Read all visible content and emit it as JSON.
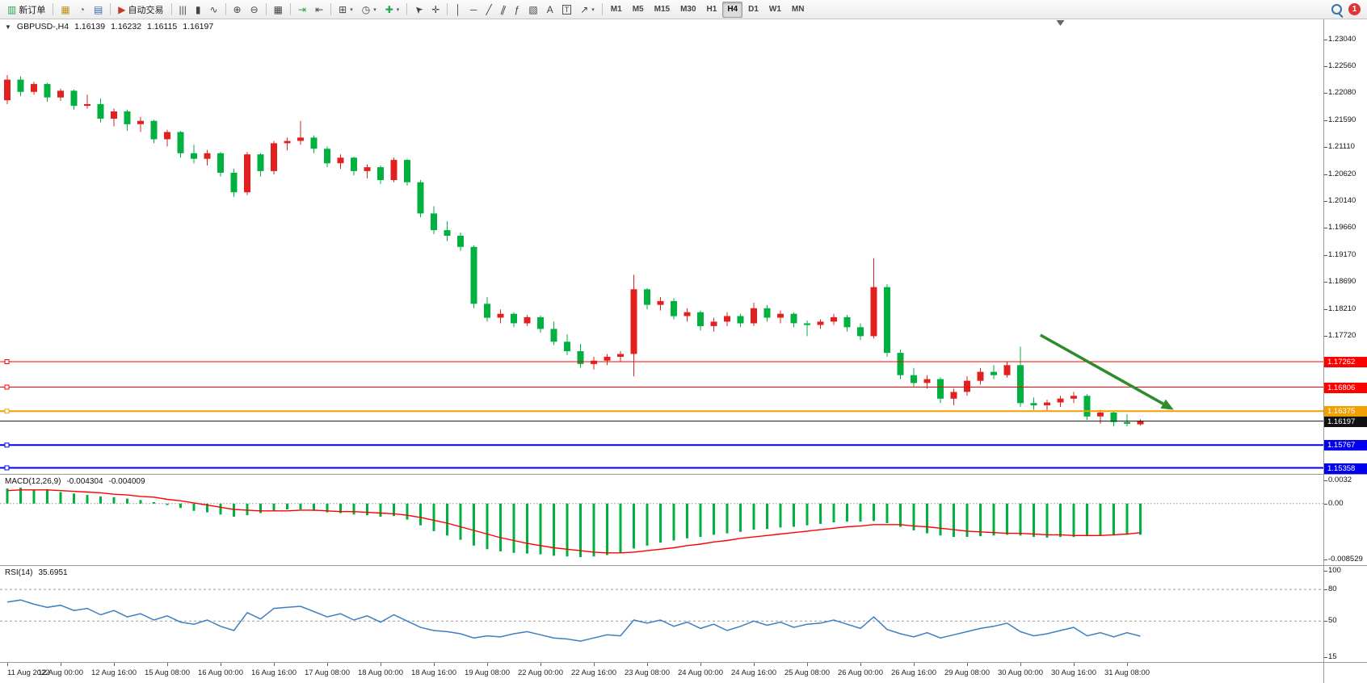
{
  "toolbar": {
    "dropdown_glyph": "▾",
    "badge": "1",
    "active_timeframe": "H4",
    "timeframes": [
      "M1",
      "M5",
      "M15",
      "M30",
      "H1",
      "H4",
      "D1",
      "W1",
      "MN"
    ],
    "groups": [
      {
        "items": [
          {
            "name": "new-order-button",
            "glyph": "▥",
            "glyph_color": "#2da44e",
            "label": "新订单"
          }
        ]
      },
      {
        "items": [
          {
            "name": "market-watch-button",
            "glyph": "▦",
            "glyph_color": "#c09020"
          },
          {
            "name": "navigator-button",
            "glyph": "◔",
            "glyph_color": "#3a6ea5"
          },
          {
            "name": "data-window-button",
            "glyph": "▤",
            "glyph_color": "#3a6ea5"
          }
        ]
      },
      {
        "items": [
          {
            "name": "auto-trading-button",
            "glyph": "▶",
            "glyph_color": "#c03a2b",
            "label": "自动交易"
          }
        ]
      },
      {
        "items": [
          {
            "name": "bar-chart-button",
            "glyph": "|||"
          },
          {
            "name": "candlestick-button",
            "glyph": "▮"
          },
          {
            "name": "line-chart-button",
            "glyph": "∿"
          }
        ]
      },
      {
        "items": [
          {
            "name": "zoom-in-button",
            "glyph": "⊕"
          },
          {
            "name": "zoom-out-button",
            "glyph": "⊖"
          }
        ]
      },
      {
        "items": [
          {
            "name": "tile-windows-button",
            "glyph": "▦"
          }
        ]
      },
      {
        "items": [
          {
            "name": "auto-scroll-button",
            "glyph": "⇥",
            "glyph_color": "#2da44e"
          },
          {
            "name": "chart-shift-button",
            "glyph": "⇤"
          }
        ]
      },
      {
        "items": [
          {
            "name": "new-chart-button",
            "glyph": "⊞",
            "dropdown": true
          },
          {
            "name": "periods-button",
            "glyph": "◷",
            "dropdown": true
          },
          {
            "name": "indicators-button",
            "glyph": "✚",
            "glyph_color": "#2da44e",
            "dropdown": true
          }
        ]
      },
      {
        "items": [
          {
            "name": "cursor-button",
            "glyph": "➤",
            "rot": -135
          },
          {
            "name": "crosshair-button",
            "glyph": "✛"
          }
        ]
      },
      {
        "items": [
          {
            "name": "vertical-line-button",
            "glyph": "│"
          },
          {
            "name": "horizontal-line-button",
            "glyph": "─"
          },
          {
            "name": "trendline-button",
            "glyph": "╱"
          },
          {
            "name": "channel-button",
            "glyph": "∥",
            "rot": 20
          },
          {
            "name": "fibonacci-button",
            "glyph": "ƒ"
          },
          {
            "name": "shapes-button",
            "glyph": "▧"
          },
          {
            "name": "text-button",
            "glyph": "A"
          },
          {
            "name": "text-label-button",
            "glyph": "T",
            "boxed": true
          },
          {
            "name": "arrows-button",
            "glyph": "↗",
            "dropdown": true
          }
        ]
      }
    ]
  },
  "chart_header": {
    "collapse_glyph": "▼",
    "title": "GBPUSD-,H4",
    "open": "1.16139",
    "high": "1.16232",
    "low": "1.16115",
    "close": "1.16197"
  },
  "chart_data": [
    {
      "type": "candlestick",
      "symbol": "GBPUSD-",
      "period": "H4",
      "up_color": "#e32020",
      "down_color": "#00b140",
      "ylim": [
        1.1525,
        1.234
      ],
      "x_label_every": 4,
      "x_labels": [
        "11 Aug 2022",
        "12 Aug 00:00",
        "12 Aug 16:00",
        "15 Aug 08:00",
        "16 Aug 00:00",
        "16 Aug 16:00",
        "17 Aug 08:00",
        "18 Aug 00:00",
        "18 Aug 16:00",
        "19 Aug 08:00",
        "22 Aug 00:00",
        "22 Aug 16:00",
        "23 Aug 08:00",
        "24 Aug 00:00",
        "24 Aug 16:00",
        "25 Aug 08:00",
        "26 Aug 00:00",
        "26 Aug 16:00",
        "29 Aug 08:00",
        "30 Aug 00:00",
        "30 Aug 16:00",
        "31 Aug 08:00"
      ],
      "scale_labels": [
        "1.23040",
        "1.22560",
        "1.22080",
        "1.21590",
        "1.21110",
        "1.20620",
        "1.20140",
        "1.19660",
        "1.19170",
        "1.18690",
        "1.18210",
        "1.17720"
      ],
      "hlines": [
        {
          "label": "1.17262",
          "price": 1.17262,
          "color": "#ff0000",
          "width": 1
        },
        {
          "label": "1.16806",
          "price": 1.16806,
          "color": "#ff0000",
          "width": 1
        },
        {
          "label": "1.16375",
          "price": 1.16375,
          "color": "#f0a000",
          "width": 2
        },
        {
          "label": "1.15767",
          "price": 1.15767,
          "color": "#0000ee",
          "width": 2
        },
        {
          "label": "1.15358",
          "price": 1.15358,
          "color": "#0000ee",
          "width": 2
        },
        {
          "label": "1.16197",
          "price": 1.16197,
          "color": "#111111",
          "width": 1,
          "current": true
        }
      ],
      "arrow": {
        "from": [
          77.5,
          1.1774
        ],
        "to": [
          87.5,
          1.164
        ],
        "color": "#2e8b2e"
      },
      "shift_marker_bar": 79,
      "candles": [
        [
          1.2195,
          1.224,
          1.2188,
          1.2232
        ],
        [
          1.2232,
          1.2238,
          1.2202,
          1.221
        ],
        [
          1.221,
          1.2228,
          1.2205,
          1.2224
        ],
        [
          1.2224,
          1.2226,
          1.2192,
          1.22
        ],
        [
          1.22,
          1.2216,
          1.2194,
          1.2212
        ],
        [
          1.2212,
          1.2214,
          1.2178,
          1.2185
        ],
        [
          1.2185,
          1.2205,
          1.218,
          1.2188
        ],
        [
          1.2188,
          1.2198,
          1.2155,
          1.2162
        ],
        [
          1.2162,
          1.218,
          1.2148,
          1.2175
        ],
        [
          1.2175,
          1.2178,
          1.214,
          1.2152
        ],
        [
          1.2152,
          1.2165,
          1.2138,
          1.2158
        ],
        [
          1.2158,
          1.216,
          1.2118,
          1.2125
        ],
        [
          1.2125,
          1.2142,
          1.2112,
          1.2138
        ],
        [
          1.2138,
          1.214,
          1.2092,
          1.21
        ],
        [
          1.21,
          1.2115,
          1.2082,
          1.209
        ],
        [
          1.209,
          1.2106,
          1.2078,
          1.21
        ],
        [
          1.21,
          1.2102,
          1.2058,
          1.2065
        ],
        [
          1.2065,
          1.2072,
          1.2022,
          1.203
        ],
        [
          1.203,
          1.2102,
          1.2025,
          1.2098
        ],
        [
          1.2098,
          1.21,
          1.2058,
          1.2068
        ],
        [
          1.2068,
          1.2122,
          1.2062,
          1.2118
        ],
        [
          1.2118,
          1.2128,
          1.2105,
          1.2122
        ],
        [
          1.2122,
          1.2158,
          1.2115,
          1.2128
        ],
        [
          1.2128,
          1.2132,
          1.21,
          1.2108
        ],
        [
          1.2108,
          1.2112,
          1.2075,
          1.2082
        ],
        [
          1.2082,
          1.2098,
          1.2072,
          1.2092
        ],
        [
          1.2092,
          1.2094,
          1.206,
          1.2068
        ],
        [
          1.2068,
          1.208,
          1.2055,
          1.2075
        ],
        [
          1.2075,
          1.2078,
          1.2045,
          1.2052
        ],
        [
          1.2052,
          1.2092,
          1.2048,
          1.2088
        ],
        [
          1.2088,
          1.209,
          1.2042,
          1.2048
        ],
        [
          1.2048,
          1.2052,
          1.1985,
          1.1992
        ],
        [
          1.1992,
          1.2005,
          1.1955,
          1.1962
        ],
        [
          1.1962,
          1.1978,
          1.1942,
          1.1952
        ],
        [
          1.1952,
          1.1958,
          1.1925,
          1.1932
        ],
        [
          1.1932,
          1.1935,
          1.1822,
          1.183
        ],
        [
          1.183,
          1.1842,
          1.1798,
          1.1805
        ],
        [
          1.1805,
          1.182,
          1.1795,
          1.1812
        ],
        [
          1.1812,
          1.1815,
          1.1788,
          1.1795
        ],
        [
          1.1795,
          1.181,
          1.179,
          1.1806
        ],
        [
          1.1806,
          1.1809,
          1.1778,
          1.1785
        ],
        [
          1.1785,
          1.1798,
          1.1756,
          1.1762
        ],
        [
          1.1762,
          1.1775,
          1.1738,
          1.1745
        ],
        [
          1.1745,
          1.1758,
          1.1715,
          1.1722
        ],
        [
          1.1722,
          1.1735,
          1.1712,
          1.1728
        ],
        [
          1.1728,
          1.174,
          1.172,
          1.1735
        ],
        [
          1.1735,
          1.1745,
          1.1725,
          1.174
        ],
        [
          1.174,
          1.1882,
          1.17,
          1.1856
        ],
        [
          1.1856,
          1.1858,
          1.182,
          1.1828
        ],
        [
          1.1828,
          1.1842,
          1.1818,
          1.1835
        ],
        [
          1.1835,
          1.184,
          1.1802,
          1.1808
        ],
        [
          1.1808,
          1.1822,
          1.1798,
          1.1815
        ],
        [
          1.1815,
          1.1818,
          1.1782,
          1.179
        ],
        [
          1.179,
          1.1805,
          1.178,
          1.1798
        ],
        [
          1.1798,
          1.1815,
          1.179,
          1.1808
        ],
        [
          1.1808,
          1.1812,
          1.1788,
          1.1795
        ],
        [
          1.1795,
          1.1832,
          1.179,
          1.1822
        ],
        [
          1.1822,
          1.1828,
          1.1798,
          1.1805
        ],
        [
          1.1805,
          1.1818,
          1.1795,
          1.1812
        ],
        [
          1.1812,
          1.1815,
          1.1788,
          1.1795
        ],
        [
          1.1795,
          1.18,
          1.1772,
          1.1792
        ],
        [
          1.1792,
          1.1802,
          1.1785,
          1.1798
        ],
        [
          1.1798,
          1.1812,
          1.1792,
          1.1806
        ],
        [
          1.1806,
          1.181,
          1.178,
          1.1788
        ],
        [
          1.1788,
          1.1795,
          1.1765,
          1.1772
        ],
        [
          1.1772,
          1.1912,
          1.1768,
          1.186
        ],
        [
          1.186,
          1.1865,
          1.1735,
          1.1742
        ],
        [
          1.1742,
          1.1748,
          1.1695,
          1.1702
        ],
        [
          1.1702,
          1.1715,
          1.168,
          1.1688
        ],
        [
          1.1688,
          1.1702,
          1.1678,
          1.1695
        ],
        [
          1.1695,
          1.1698,
          1.1652,
          1.166
        ],
        [
          1.166,
          1.1678,
          1.1648,
          1.1672
        ],
        [
          1.1672,
          1.17,
          1.1665,
          1.1692
        ],
        [
          1.1692,
          1.1715,
          1.1685,
          1.1708
        ],
        [
          1.1708,
          1.172,
          1.1695,
          1.1702
        ],
        [
          1.1702,
          1.1726,
          1.1698,
          1.172
        ],
        [
          1.172,
          1.1753,
          1.1645,
          1.1652
        ],
        [
          1.1652,
          1.1662,
          1.164,
          1.1648
        ],
        [
          1.1648,
          1.1658,
          1.1638,
          1.1653
        ],
        [
          1.1653,
          1.1665,
          1.1645,
          1.166
        ],
        [
          1.166,
          1.1672,
          1.1652,
          1.1665
        ],
        [
          1.1665,
          1.1668,
          1.1622,
          1.1628
        ],
        [
          1.1628,
          1.164,
          1.1615,
          1.1635
        ],
        [
          1.1635,
          1.1638,
          1.161,
          1.1618
        ],
        [
          1.1618,
          1.1632,
          1.161,
          1.1615
        ],
        [
          1.16139,
          1.16232,
          1.16115,
          1.16197
        ]
      ]
    },
    {
      "type": "macd-histogram",
      "label": "MACD(12,26,9)",
      "values_text": [
        "-0.004304",
        "-0.004009"
      ],
      "hist_color": "#00b140",
      "signal_color": "#ff0000",
      "ylim": [
        -0.0085,
        0.004
      ],
      "scale_labels": [
        "0.0032",
        "0.00",
        "-0.008529"
      ],
      "hist": [
        0.0021,
        0.0022,
        0.0019,
        0.002,
        0.0016,
        0.0014,
        0.0012,
        0.001,
        0.0009,
        0.0007,
        0.0005,
        0.0002,
        -0.0002,
        -0.0006,
        -0.001,
        -0.0012,
        -0.0015,
        -0.0018,
        -0.0016,
        -0.0013,
        -0.001,
        -0.0008,
        -0.0008,
        -0.001,
        -0.0012,
        -0.0013,
        -0.0015,
        -0.0016,
        -0.0018,
        -0.0017,
        -0.0022,
        -0.003,
        -0.0038,
        -0.0044,
        -0.005,
        -0.0058,
        -0.0063,
        -0.0066,
        -0.0068,
        -0.0069,
        -0.007,
        -0.0072,
        -0.0073,
        -0.0074,
        -0.0073,
        -0.0071,
        -0.0068,
        -0.0062,
        -0.0058,
        -0.0054,
        -0.0051,
        -0.0048,
        -0.0046,
        -0.0043,
        -0.0041,
        -0.0039,
        -0.0036,
        -0.0035,
        -0.0033,
        -0.0032,
        -0.003,
        -0.0028,
        -0.0026,
        -0.0025,
        -0.0025,
        -0.0024,
        -0.0027,
        -0.0032,
        -0.0037,
        -0.0041,
        -0.0044,
        -0.0046,
        -0.0046,
        -0.0045,
        -0.0044,
        -0.0043,
        -0.0044,
        -0.0046,
        -0.0047,
        -0.0046,
        -0.0046,
        -0.0045,
        -0.0044,
        -0.0044,
        -0.0043,
        -0.004304
      ],
      "signal": [
        0.0018,
        0.0019,
        0.0019,
        0.0019,
        0.0018,
        0.0017,
        0.0016,
        0.0015,
        0.0013,
        0.0012,
        0.001,
        0.0009,
        0.0006,
        0.0004,
        0.0001,
        -0.0002,
        -0.0005,
        -0.0008,
        -0.0009,
        -0.001,
        -0.001,
        -0.001,
        -0.0009,
        -0.0009,
        -0.001,
        -0.0011,
        -0.0011,
        -0.0012,
        -0.0013,
        -0.0014,
        -0.0016,
        -0.0019,
        -0.0023,
        -0.0027,
        -0.0032,
        -0.0037,
        -0.0042,
        -0.0047,
        -0.0051,
        -0.0055,
        -0.0058,
        -0.0061,
        -0.0063,
        -0.0065,
        -0.0067,
        -0.0068,
        -0.0068,
        -0.0067,
        -0.0065,
        -0.0063,
        -0.0061,
        -0.0058,
        -0.0056,
        -0.0053,
        -0.0051,
        -0.0048,
        -0.0046,
        -0.0044,
        -0.0042,
        -0.004,
        -0.0038,
        -0.0036,
        -0.0034,
        -0.0032,
        -0.0031,
        -0.0029,
        -0.0029,
        -0.0029,
        -0.0031,
        -0.0032,
        -0.0034,
        -0.0036,
        -0.0038,
        -0.0039,
        -0.004,
        -0.0041,
        -0.0041,
        -0.0042,
        -0.0043,
        -0.0043,
        -0.0044,
        -0.0044,
        -0.0044,
        -0.0043,
        -0.0042,
        -0.004009
      ]
    },
    {
      "type": "line",
      "label": "RSI(14)",
      "value_text": "35.6951",
      "color": "#3d7fc1",
      "ylim": [
        15,
        100
      ],
      "levels": [
        80,
        50
      ],
      "scale_labels": [
        "100",
        "80",
        "50",
        "15"
      ],
      "values": [
        68,
        70,
        66,
        63,
        65,
        60,
        62,
        56,
        60,
        54,
        57,
        51,
        55,
        49,
        47,
        51,
        45,
        41,
        58,
        52,
        62,
        63,
        64,
        59,
        54,
        57,
        51,
        55,
        49,
        56,
        50,
        44,
        41,
        40,
        38,
        34,
        36,
        35,
        38,
        40,
        37,
        34,
        33,
        31,
        34,
        37,
        36,
        51,
        48,
        51,
        45,
        49,
        43,
        47,
        41,
        45,
        50,
        46,
        49,
        44,
        47,
        48,
        51,
        47,
        43,
        54,
        42,
        38,
        35,
        39,
        34,
        37,
        40,
        43,
        45,
        48,
        40,
        36,
        38,
        41,
        44,
        36,
        39,
        35,
        39,
        35.6951
      ]
    }
  ]
}
